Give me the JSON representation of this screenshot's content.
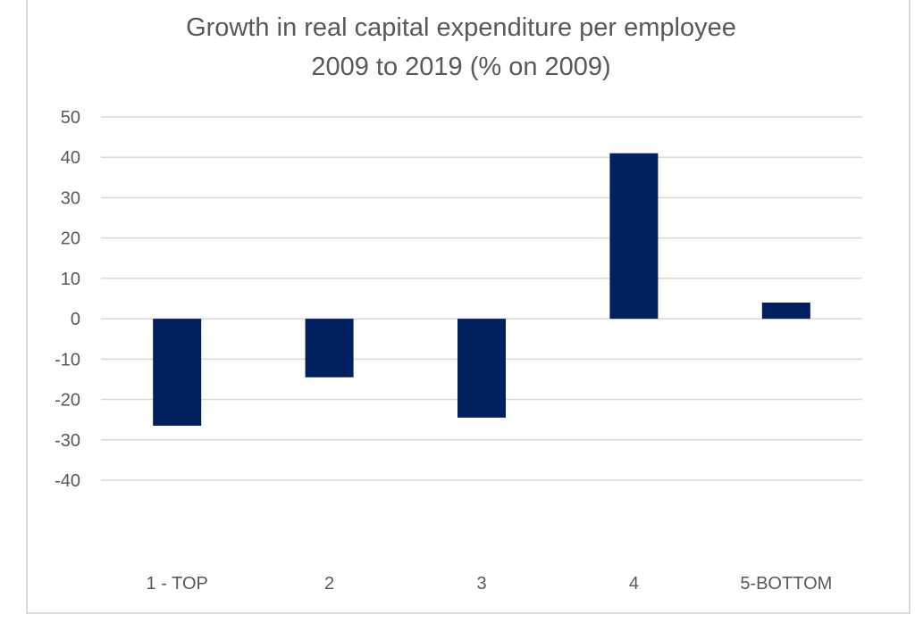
{
  "chart_data": {
    "type": "bar",
    "title_lines": [
      "Growth in real capital expenditure per employee",
      "2009 to 2019 (% on 2009)"
    ],
    "categories": [
      "1 - TOP",
      "2",
      "3",
      "4",
      "5-BOTTOM"
    ],
    "values": [
      -26.5,
      -14.5,
      -24.5,
      41,
      4
    ],
    "ylim": [
      -40,
      50
    ],
    "yticks": [
      50,
      40,
      30,
      20,
      10,
      0,
      -10,
      -20,
      -30,
      -40
    ],
    "ytick_labels": [
      "50",
      "40",
      "30",
      "20",
      "10",
      "0",
      "-10",
      "-20",
      "-30",
      "-40"
    ],
    "grid": true,
    "legend": "none",
    "bar_color": "#002060"
  }
}
